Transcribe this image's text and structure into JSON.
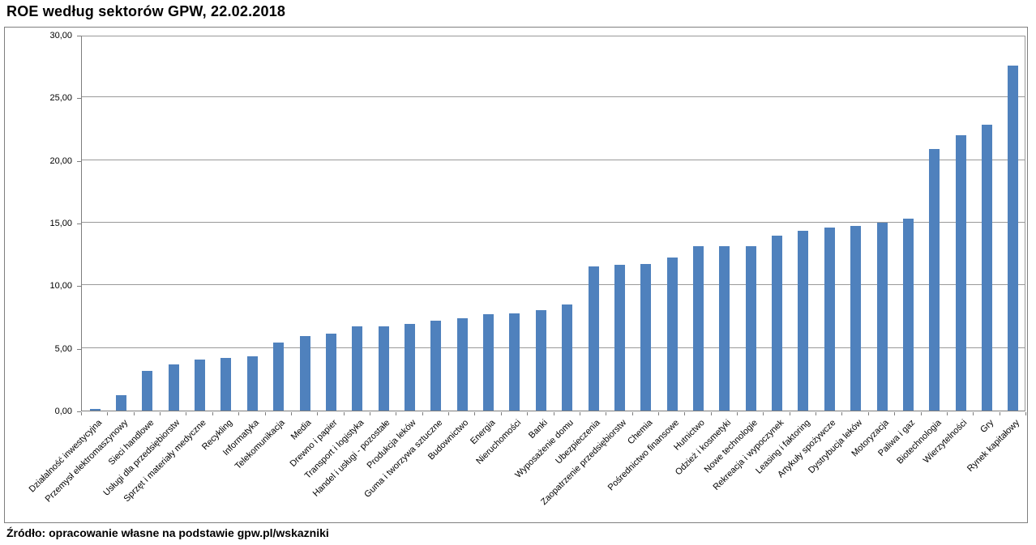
{
  "chart": {
    "title": "ROE według sektorów GPW, 22.02.2018",
    "source": "Źródło: opracowanie własne na podstawie gpw.pl/wskazniki"
  },
  "chart_data": {
    "type": "bar",
    "title": "ROE według sektorów GPW, 22.02.2018",
    "xlabel": "",
    "ylabel": "",
    "ylim": [
      0,
      30
    ],
    "ytick_step": 5,
    "ytick_labels": [
      "0,00",
      "5,00",
      "10,00",
      "15,00",
      "20,00",
      "25,00",
      "30,00"
    ],
    "grid": true,
    "legend": false,
    "bar_color": "#4f81bd",
    "categories": [
      "Działalność inwestycyjna",
      "Przemysł elektromaszynowy",
      "Sieci handlowe",
      "Usługi dla przedsiębiorstw",
      "Sprzęt i materiały medyczne",
      "Recykling",
      "Informatyka",
      "Telekomunikacja",
      "Media",
      "Drewno i papier",
      "Transport i logistyka",
      "Handel i usługi - pozostałe",
      "Produkcja leków",
      "Guma i tworzywa sztuczne",
      "Budownictwo",
      "Energia",
      "Nieruchomości",
      "Banki",
      "Wyposażenie domu",
      "Ubezpieczenia",
      "Zaopatrzenie przedsiębiorstw",
      "Chemia",
      "Pośrednictwo finansowe",
      "Hutnictwo",
      "Odzież i kosmetyki",
      "Nowe technologie",
      "Rekreacja i wypoczynek",
      "Leasing i faktoring",
      "Artykuły spożywcze",
      "Dystrybucja leków",
      "Motoryzacja",
      "Paliwa i gaz",
      "Biotechnologia",
      "Wierzytelności",
      "Gry",
      "Rynek kapitałowy"
    ],
    "values": [
      0.15,
      1.25,
      3.15,
      3.7,
      4.1,
      4.2,
      4.35,
      5.45,
      5.95,
      6.15,
      6.7,
      6.75,
      6.95,
      7.15,
      7.35,
      7.7,
      7.75,
      8.0,
      8.45,
      11.5,
      11.65,
      11.7,
      12.2,
      13.1,
      13.1,
      13.15,
      13.95,
      14.35,
      14.6,
      14.75,
      15.0,
      15.3,
      20.9,
      22.0,
      22.8,
      27.55
    ],
    "source": "Źródło: opracowanie własne na podstawie gpw.pl/wskazniki"
  }
}
